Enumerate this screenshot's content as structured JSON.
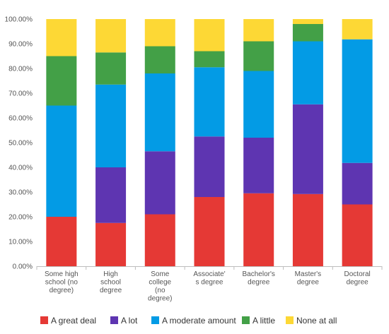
{
  "chart_data": {
    "type": "bar",
    "stacked": true,
    "normalized": true,
    "categories": [
      [
        "Some high",
        "school (no",
        "degree)"
      ],
      [
        "High",
        "school",
        "degree"
      ],
      [
        "Some",
        "college",
        "(no",
        "degree)"
      ],
      [
        "Associate'",
        "s degree"
      ],
      [
        "Bachelor's",
        "degree"
      ],
      [
        "Master's",
        "degree"
      ],
      [
        "Doctoral",
        "degree"
      ]
    ],
    "series": [
      {
        "name": "A great deal",
        "color": "#e53935",
        "values": [
          20.0,
          17.5,
          21.0,
          28.0,
          29.5,
          29.2,
          25.0
        ]
      },
      {
        "name": "A lot",
        "color": "#5e35b1",
        "values": [
          0.0,
          22.5,
          25.5,
          24.5,
          22.5,
          36.3,
          16.8
        ]
      },
      {
        "name": "A moderate amount",
        "color": "#039be5",
        "values": [
          45.0,
          33.5,
          31.5,
          28.0,
          27.0,
          25.5,
          50.0
        ]
      },
      {
        "name": "A little",
        "color": "#43a047",
        "values": [
          20.0,
          13.0,
          11.0,
          6.5,
          12.0,
          7.0,
          0.0
        ]
      },
      {
        "name": "None at all",
        "color": "#fdd835",
        "values": [
          15.0,
          13.5,
          11.0,
          13.0,
          9.0,
          2.0,
          8.2
        ]
      }
    ],
    "yticks": [
      "0.00%",
      "10.00%",
      "20.00%",
      "30.00%",
      "40.00%",
      "50.00%",
      "60.00%",
      "70.00%",
      "80.00%",
      "90.00%",
      "100.00%"
    ],
    "ylim": [
      0,
      100
    ],
    "grid": false,
    "legend": "bottom"
  }
}
